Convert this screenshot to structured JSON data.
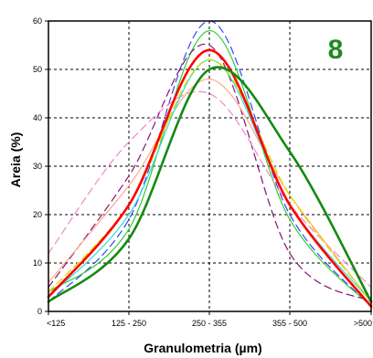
{
  "chart_data": {
    "type": "line",
    "panel_label": "8",
    "xlabel": "Granulometria (µm)",
    "ylabel": "Areia (%)",
    "categories": [
      "<125",
      "125 - 250",
      "250 - 355",
      "355 - 500",
      ">500"
    ],
    "ylim": [
      0,
      60
    ],
    "yticks": [
      0,
      10,
      20,
      30,
      40,
      50,
      60
    ],
    "grid": true,
    "colors": {
      "panel_label": "#1e8a1e",
      "grid": "#000000",
      "axis": "#000000"
    },
    "series": [
      {
        "values": [
          3,
          22,
          54,
          22,
          1
        ],
        "color": "#ff0000",
        "style": "solid",
        "width": 2.6
      },
      {
        "values": [
          2,
          15,
          50,
          33,
          2
        ],
        "color": "#138a13",
        "style": "solid",
        "width": 2.6
      },
      {
        "values": [
          2,
          19,
          60,
          20,
          1
        ],
        "color": "#3344ff",
        "style": "dashed",
        "width": 1.2
      },
      {
        "values": [
          4,
          17,
          58,
          19,
          1
        ],
        "color": "#33cc33",
        "style": "solid",
        "width": 1.2
      },
      {
        "values": [
          5,
          28,
          55,
          12,
          2
        ],
        "color": "#881177",
        "style": "dashed",
        "width": 1.2
      },
      {
        "values": [
          12,
          35,
          45,
          22,
          5
        ],
        "color": "#ee88cc",
        "style": "dashed",
        "width": 1.2
      },
      {
        "values": [
          4,
          22,
          52,
          24,
          2
        ],
        "color": "#dddd00",
        "style": "dashed",
        "width": 1.5
      },
      {
        "values": [
          6,
          26,
          48,
          24,
          2
        ],
        "color": "#ffaa88",
        "style": "solid",
        "width": 1.2
      },
      {
        "values": [
          3,
          20,
          52,
          22,
          2
        ],
        "color": "#33dddd",
        "style": "solid",
        "width": 1.2
      }
    ]
  }
}
